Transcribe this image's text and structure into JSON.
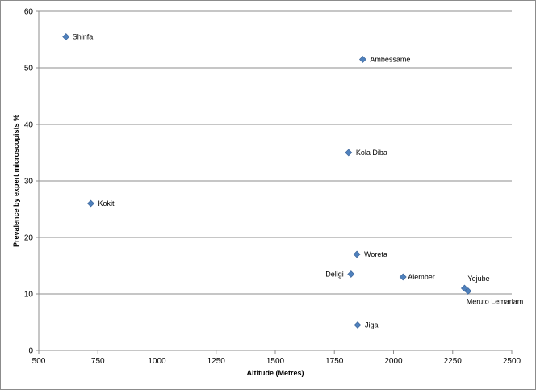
{
  "chart_data": {
    "type": "scatter",
    "title": "",
    "xlabel": "Altitude (Metres)",
    "ylabel": "Prevalence by expert microscopists %",
    "xlim": [
      500,
      2500
    ],
    "ylim": [
      0,
      60
    ],
    "x_ticks": [
      500,
      750,
      1000,
      1250,
      1500,
      1750,
      2000,
      2250,
      2500
    ],
    "y_ticks": [
      0,
      10,
      20,
      30,
      40,
      50,
      60
    ],
    "grid": "horizontal major gridlines",
    "legend": "none",
    "marker_color": "#4f81bd",
    "marker": "diamond",
    "points": [
      {
        "label": "Shinfa",
        "x": 615,
        "y": 55.5
      },
      {
        "label": "Ambessame",
        "x": 1870,
        "y": 51.5
      },
      {
        "label": "Kola Diba",
        "x": 1810,
        "y": 35
      },
      {
        "label": "Kokit",
        "x": 720,
        "y": 26
      },
      {
        "label": "Woreta",
        "x": 1845,
        "y": 17
      },
      {
        "label": "Deligi",
        "x": 1820,
        "y": 13.5
      },
      {
        "label": "Alember",
        "x": 2040,
        "y": 13
      },
      {
        "label": "Yejube",
        "x": 2300,
        "y": 11
      },
      {
        "label": "Meruto Lemariam",
        "x": 2315,
        "y": 10.5
      },
      {
        "label": "Jiga",
        "x": 1848,
        "y": 4.5
      }
    ]
  }
}
